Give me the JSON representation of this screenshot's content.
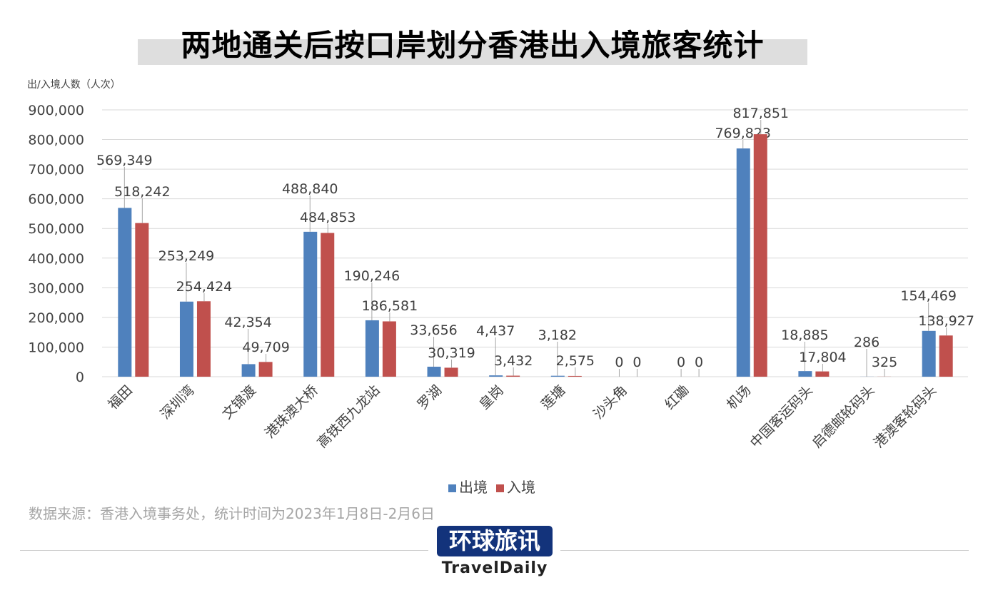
{
  "title": "两地通关后按口岸划分香港出入境旅客统计",
  "source": "数据来源：香港入境事务处，统计时间为2023年1月8日-2月6日",
  "logo": {
    "cn": "环球旅讯",
    "en": "TravelDaily"
  },
  "chart_data": {
    "type": "bar",
    "title": "两地通关后按口岸划分香港出入境旅客统计",
    "ylabel": "出/入境人数（人次）",
    "xlabel": "",
    "ylim": [
      0,
      900000
    ],
    "yticks": [
      "0",
      "100,000",
      "200,000",
      "300,000",
      "400,000",
      "500,000",
      "600,000",
      "700,000",
      "800,000",
      "900,000"
    ],
    "grid": true,
    "legend": "bottom",
    "categories": [
      "福田",
      "深圳湾",
      "文锦渡",
      "港珠澳大桥",
      "高铁西九龙站",
      "罗湖",
      "皇岗",
      "莲塘",
      "沙头角",
      "红磡",
      "机场",
      "中国客运码头",
      "启德邮轮码头",
      "港澳客轮码头"
    ],
    "series": [
      {
        "name": "出境",
        "color": "#4f81bd",
        "values": [
          569349,
          253249,
          42354,
          488840,
          190246,
          33656,
          4437,
          3182,
          0,
          0,
          769823,
          18885,
          286,
          154469
        ],
        "labels": [
          "569,349",
          "253,249",
          "42,354",
          "488,840",
          "190,246",
          "33,656",
          "4,437",
          "3,182",
          "0",
          "0",
          "769,823",
          "18,885",
          "286",
          "154,469"
        ]
      },
      {
        "name": "入境",
        "color": "#c0504d",
        "values": [
          518242,
          254424,
          49709,
          484853,
          186581,
          30319,
          3432,
          2575,
          0,
          0,
          817851,
          17804,
          325,
          138927
        ],
        "labels": [
          "518,242",
          "254,424",
          "49,709",
          "484,853",
          "186,581",
          "30,319",
          "3,432",
          "2,575",
          "0",
          "0",
          "817,851",
          "17,804",
          "325",
          "138,927"
        ]
      }
    ]
  }
}
